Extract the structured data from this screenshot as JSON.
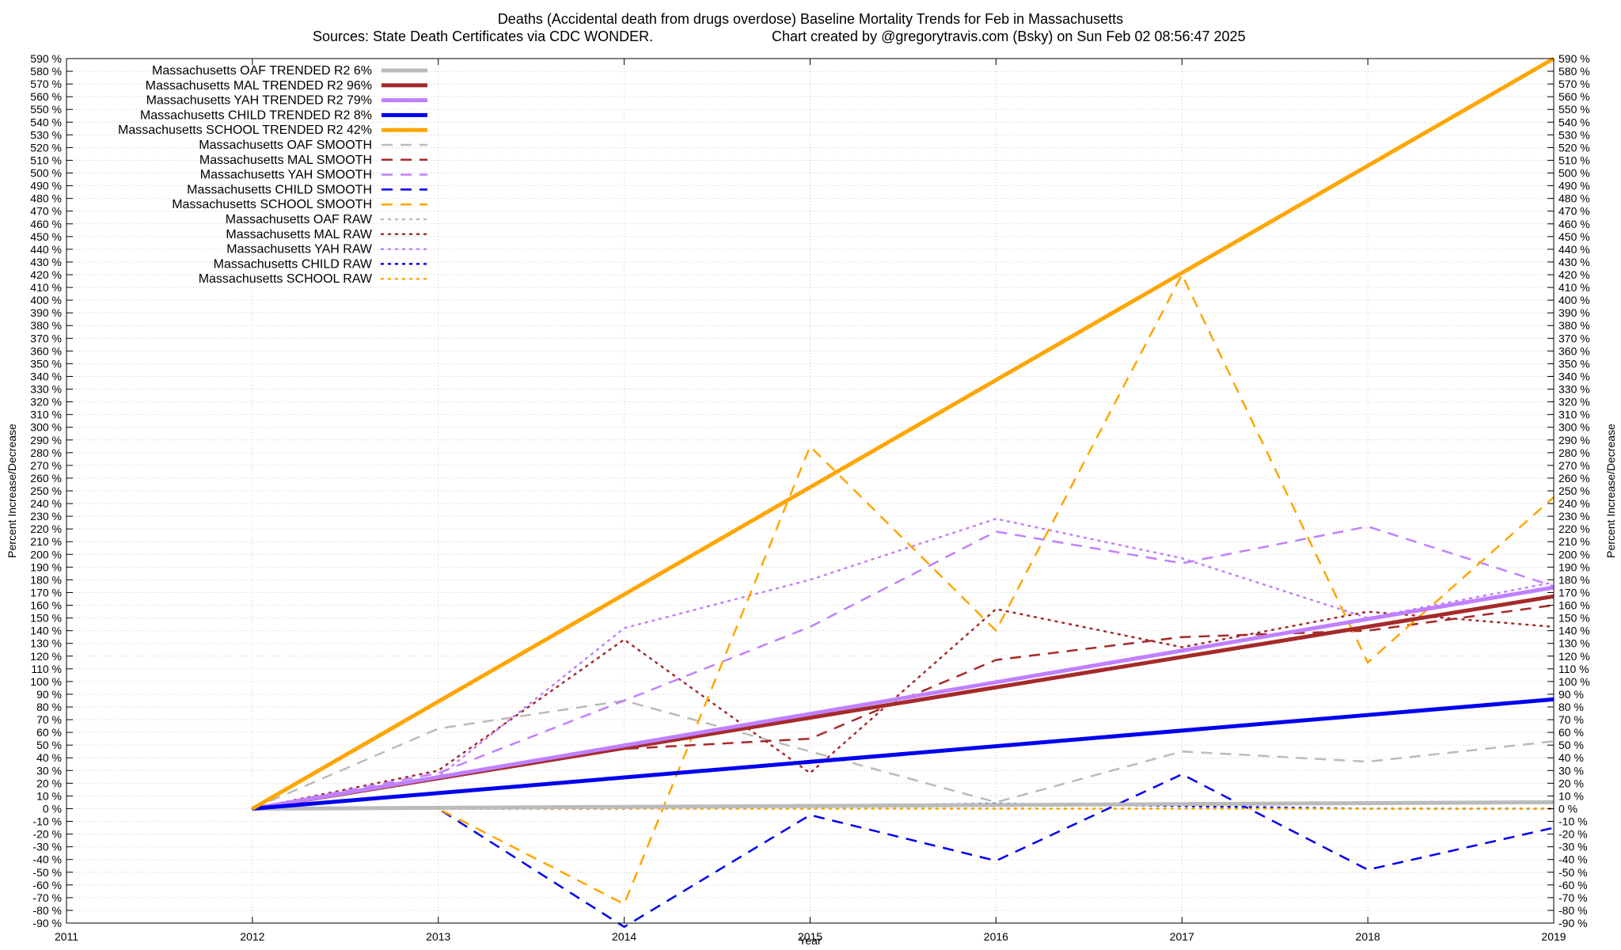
{
  "chart_data": {
    "type": "line",
    "title": "Deaths (Accidental death from drugs overdose)  Baseline Mortality Trends for Feb in Massachusetts",
    "subtitle_left": "Sources: State Death Certificates via CDC WONDER.",
    "subtitle_right": "Chart created by @gregorytravis.com (Bsky) on Sun Feb 02 08:56:47 2025",
    "xlabel": "Year",
    "ylabel": "Percent Increase/Decrease",
    "y2label": "Percent Increase/Decrease",
    "xlim": [
      2011,
      2019
    ],
    "ylim": [
      -90,
      590
    ],
    "ystep": 10,
    "y_tick_suffix": " %",
    "x_ticks": [
      "2011",
      "2012",
      "2013",
      "2014",
      "2015",
      "2016",
      "2017",
      "2018",
      "2019"
    ],
    "grid": true,
    "legend_position": "top-left",
    "series": [
      {
        "name": "Massachusetts OAF TRENDED R2  6%",
        "style": "solid",
        "color": "#bbbbbb",
        "width": 5,
        "x": [
          2012,
          2019
        ],
        "y": [
          0,
          5
        ]
      },
      {
        "name": "Massachusetts MAL TRENDED R2  96%",
        "style": "solid",
        "color": "#a52a2a",
        "width": 5,
        "x": [
          2012,
          2019
        ],
        "y": [
          0,
          167
        ]
      },
      {
        "name": "Massachusetts YAH TRENDED R2  79%",
        "style": "solid",
        "color": "#c080ff",
        "width": 5,
        "x": [
          2012,
          2019
        ],
        "y": [
          0,
          174
        ]
      },
      {
        "name": "Massachusetts CHILD TRENDED R2  8%",
        "style": "solid",
        "color": "#0000ee",
        "width": 5,
        "x": [
          2012,
          2019
        ],
        "y": [
          0,
          86
        ]
      },
      {
        "name": "Massachusetts SCHOOL TRENDED R2  42%",
        "style": "solid",
        "color": "#ffa500",
        "width": 5,
        "x": [
          2012,
          2019
        ],
        "y": [
          0,
          590
        ]
      },
      {
        "name": "Massachusetts OAF SMOOTH",
        "style": "dashed",
        "color": "#bbbbbb",
        "width": 2.5,
        "x": [
          2012,
          2013,
          2014,
          2015,
          2016,
          2017,
          2018,
          2019
        ],
        "y": [
          0,
          63,
          85,
          45,
          5,
          45,
          37,
          53
        ]
      },
      {
        "name": "Massachusetts MAL SMOOTH",
        "style": "dashed",
        "color": "#a52a2a",
        "width": 2.5,
        "x": [
          2012,
          2013,
          2014,
          2015,
          2016,
          2017,
          2018,
          2019
        ],
        "y": [
          0,
          25,
          47,
          55,
          117,
          135,
          140,
          160
        ]
      },
      {
        "name": "Massachusetts YAH SMOOTH",
        "style": "dashed",
        "color": "#c080ff",
        "width": 2.5,
        "x": [
          2012,
          2013,
          2014,
          2015,
          2016,
          2017,
          2018,
          2019
        ],
        "y": [
          0,
          28,
          85,
          143,
          218,
          193,
          222,
          175
        ]
      },
      {
        "name": "Massachusetts CHILD SMOOTH",
        "style": "dashed",
        "color": "#0000ee",
        "width": 2.5,
        "x": [
          2012,
          2013,
          2014,
          2015,
          2016,
          2017,
          2018,
          2019
        ],
        "y": [
          0,
          0,
          -93,
          -5,
          -41,
          27,
          -48,
          -15
        ]
      },
      {
        "name": "Massachusetts SCHOOL SMOOTH",
        "style": "dashed",
        "color": "#ffa500",
        "width": 2.5,
        "x": [
          2012,
          2013,
          2014,
          2015,
          2016,
          2017,
          2018,
          2019
        ],
        "y": [
          0,
          0,
          -75,
          285,
          140,
          420,
          115,
          245
        ]
      },
      {
        "name": "Massachusetts OAF RAW",
        "style": "dotted",
        "color": "#bbbbbb",
        "width": 2.5,
        "x": [
          2012,
          2013,
          2014,
          2015,
          2016,
          2017,
          2018,
          2019
        ],
        "y": [
          0,
          0,
          0,
          0,
          0,
          0,
          0,
          0
        ]
      },
      {
        "name": "Massachusetts MAL RAW",
        "style": "dotted",
        "color": "#a52a2a",
        "width": 2.5,
        "x": [
          2012,
          2013,
          2014,
          2015,
          2016,
          2017,
          2018,
          2019
        ],
        "y": [
          0,
          30,
          133,
          28,
          157,
          127,
          155,
          143
        ]
      },
      {
        "name": "Massachusetts YAH RAW",
        "style": "dotted",
        "color": "#c080ff",
        "width": 2.5,
        "x": [
          2012,
          2013,
          2014,
          2015,
          2016,
          2017,
          2018,
          2019
        ],
        "y": [
          0,
          25,
          142,
          180,
          228,
          197,
          150,
          178
        ]
      },
      {
        "name": "Massachusetts CHILD RAW",
        "style": "dotted",
        "color": "#0000ee",
        "width": 2.5,
        "x": [
          2012,
          2013,
          2014,
          2015,
          2016,
          2017,
          2018,
          2019
        ],
        "y": [
          0,
          0,
          0,
          2,
          4,
          2,
          0,
          0
        ]
      },
      {
        "name": "Massachusetts SCHOOL RAW",
        "style": "dotted",
        "color": "#ffa500",
        "width": 2.5,
        "x": [
          2012,
          2013,
          2014,
          2015,
          2016,
          2017,
          2018,
          2019
        ],
        "y": [
          0,
          0,
          0,
          0,
          0,
          0,
          0,
          0
        ]
      }
    ]
  }
}
